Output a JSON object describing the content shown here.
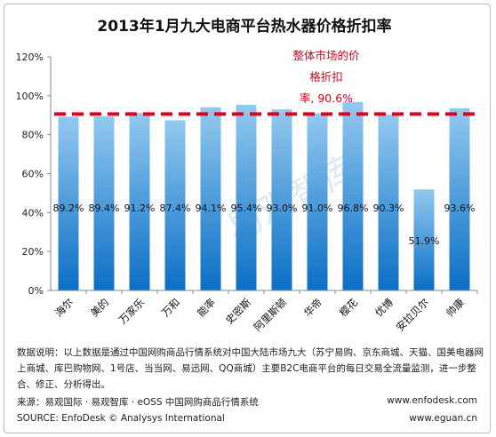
{
  "chart_data": {
    "type": "bar",
    "title": "2013年1月九大电商平台热水器价格折扣率",
    "categories": [
      "海尔",
      "美的",
      "万家乐",
      "万和",
      "能率",
      "史密斯",
      "阿里斯顿",
      "华帝",
      "樱花",
      "优博",
      "安拉贝尔",
      "帅康"
    ],
    "series": [
      {
        "values": [
          89.2,
          89.4,
          91.2,
          87.4,
          94.1,
          95.4,
          93.0,
          91.0,
          96.8,
          90.3,
          51.9,
          93.6
        ]
      }
    ],
    "data_labels": [
      "89.2%",
      "89.4%",
      "91.2%",
      "87.4%",
      "94.1%",
      "95.4%",
      "93.0%",
      "91.0%",
      "96.8%",
      "90.3%",
      "51.9%",
      "93.6%"
    ],
    "yticks": [
      "0%",
      "20%",
      "40%",
      "60%",
      "80%",
      "100%",
      "120%"
    ],
    "ylim": [
      0,
      120
    ],
    "reference_line": {
      "value": 90.6,
      "label_lines": [
        "整体市场的价",
        "格折扣",
        "率, 90.6%"
      ]
    },
    "grid": false,
    "colors": {
      "bar_top": "#93c9ef",
      "bar_bottom": "#0a6fc6",
      "reference": "#e0001b",
      "axis": "#888888"
    }
  },
  "watermark": "易观智库",
  "notes": "数据说明：以上数据是通过中国网购商品行情系统对中国大陆市场九大（苏宁易购、京东商城、天猫、国美电器网上商城、库巴购物网、1号店、当当网、易迅网、QQ商城）主要B2C电商平台的每日交易全流量监测，进一步整合、修正、分析得出。",
  "source_cn": "来源：易观国际 · 易观智库 · eOSS 中国网购商品行情系统",
  "source_en": "SOURCE: EnfoDesk © Analysys International",
  "url1": "www.enfodesk.com",
  "url2": "www.eguan.cn"
}
